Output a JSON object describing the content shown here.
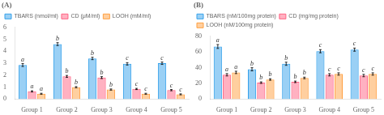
{
  "chart_data": [
    {
      "type": "bar",
      "title": "(A)",
      "categories": [
        "Group 1",
        "Group 2",
        "Group 3",
        "Group 4",
        "Group 5"
      ],
      "series": [
        {
          "name": "TBARS (nmol/ml)",
          "values": [
            2.85,
            4.6,
            3.4,
            2.95,
            3.0
          ],
          "errors": [
            0.12,
            0.12,
            0.1,
            0.1,
            0.1
          ],
          "annotations": [
            "a",
            "b",
            "b",
            "c",
            "c"
          ]
        },
        {
          "name": "CD (μM/ml)",
          "values": [
            0.65,
            1.9,
            1.8,
            0.85,
            0.75
          ],
          "errors": [
            0.05,
            0.08,
            0.08,
            0.05,
            0.05
          ],
          "annotations": [
            "a",
            "b",
            "b",
            "c",
            "c"
          ]
        },
        {
          "name": "LOOH (mM/ml)",
          "values": [
            0.45,
            1.0,
            0.8,
            0.45,
            0.4
          ],
          "errors": [
            0.04,
            0.05,
            0.05,
            0.04,
            0.04
          ],
          "annotations": [
            "a",
            "b",
            "b",
            "c",
            "c"
          ]
        }
      ],
      "ylim": [
        0,
        6
      ],
      "yticks": [
        0,
        1,
        2,
        3,
        4,
        5,
        6
      ],
      "grid": false,
      "legend": "top"
    },
    {
      "type": "bar",
      "title": "(B)",
      "categories": [
        "Group 1",
        "Group 2",
        "Group 3",
        "Group 4",
        "Group 5"
      ],
      "series": [
        {
          "name": "TBARS (nM/100mg protein)",
          "values": [
            67,
            38,
            45,
            61,
            63
          ],
          "errors": [
            2.5,
            2.0,
            2.0,
            2.0,
            2.0
          ],
          "annotations": [
            "a",
            "b",
            "b",
            "c",
            "c"
          ]
        },
        {
          "name": "CD (mg/mg protein)",
          "values": [
            31,
            21,
            22,
            31,
            30
          ],
          "errors": [
            1.5,
            1.0,
            1.0,
            1.5,
            1.5
          ],
          "annotations": [
            "a",
            "b",
            "b",
            "c",
            "c"
          ]
        },
        {
          "name": "LOOH (nM/100mg protein)",
          "values": [
            34,
            25,
            27,
            32,
            32
          ],
          "errors": [
            1.5,
            1.0,
            1.0,
            1.5,
            1.5
          ],
          "annotations": [
            "a",
            "b",
            "b",
            "c",
            "c"
          ]
        }
      ],
      "ylim": [
        0,
        80
      ],
      "yticks": [
        0,
        20,
        40,
        60,
        80
      ],
      "grid": false,
      "legend": "top"
    }
  ]
}
